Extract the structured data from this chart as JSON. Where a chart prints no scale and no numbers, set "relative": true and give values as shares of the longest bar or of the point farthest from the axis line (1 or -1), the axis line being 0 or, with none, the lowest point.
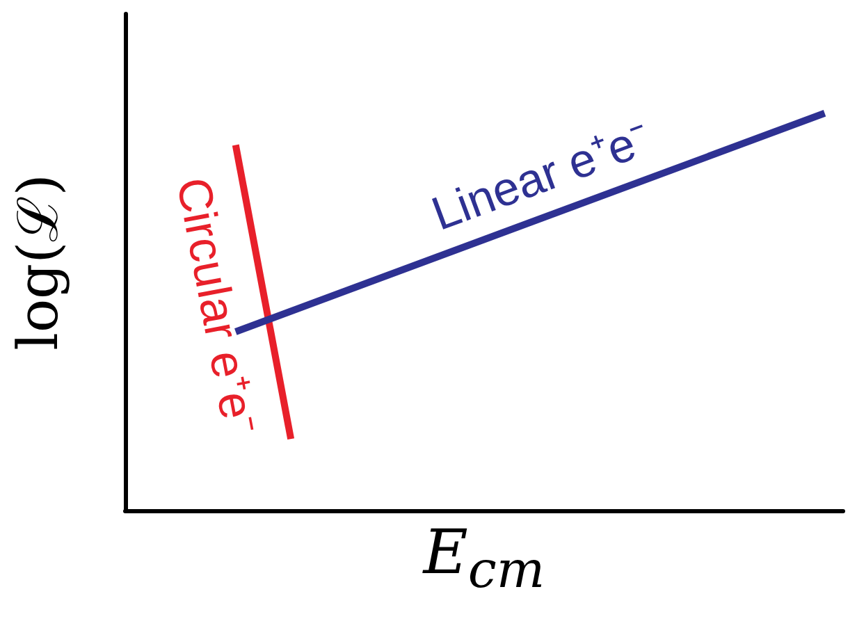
{
  "chart_data": {
    "type": "line",
    "relative": true,
    "xlabel": "E$_{cm}$",
    "ylabel": "log(ℒ)",
    "grid": false,
    "marker": "none",
    "categories": [
      null,
      null,
      null,
      null,
      null,
      null,
      null,
      null,
      null,
      null,
      null,
      null,
      null,
      null,
      null,
      null,
      null,
      null,
      null,
      null,
      null,
      null,
      null,
      null,
      null,
      null,
      null,
      null,
      null,
      null,
      null,
      null,
      null,
      null,
      null,
      null,
      null,
      null,
      null,
      null
    ],
    "series": [
      {
        "name": "Circular e⁺e⁻",
        "color": "#e8202a",
        "values": [
          null,
          null,
          null,
          null,
          null,
          null,
          0.92,
          null,
          null,
          0.18,
          null,
          null,
          null,
          null,
          null,
          null,
          null,
          null,
          null,
          null,
          null,
          null,
          null,
          null,
          null,
          null,
          null,
          null,
          null,
          null,
          null,
          null,
          null,
          null,
          null,
          null,
          null,
          null,
          null,
          null
        ]
      },
      {
        "name": "Linear e⁺e⁻",
        "color": "#2e3192",
        "values": [
          null,
          null,
          null,
          null,
          null,
          null,
          0.45,
          null,
          null,
          null,
          null,
          null,
          null,
          null,
          null,
          null,
          null,
          null,
          null,
          null,
          null,
          null,
          null,
          null,
          null,
          null,
          null,
          null,
          null,
          null,
          null,
          null,
          null,
          null,
          null,
          null,
          null,
          null,
          1,
          null
        ]
      }
    ]
  }
}
